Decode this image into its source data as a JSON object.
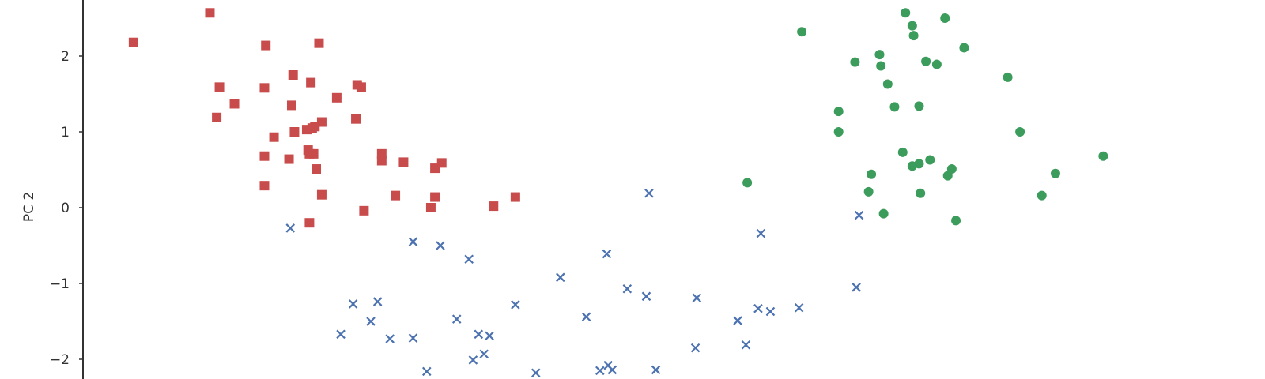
{
  "chart_data": {
    "type": "scatter",
    "ylabel": "PC 2",
    "ylim": [
      -2.2,
      2.8
    ],
    "xlim": [
      -3.4,
      4.8
    ],
    "y_ticks": [
      {
        "value": 2,
        "label": "2"
      },
      {
        "value": 1,
        "label": "1"
      },
      {
        "value": 0,
        "label": "0"
      },
      {
        "value": -1,
        "label": "−1"
      },
      {
        "value": -2,
        "label": "−2"
      }
    ],
    "grid": false,
    "series": [
      {
        "marker": "square",
        "color": "#c94c4c",
        "points": [
          [
            -3.05,
            2.18
          ],
          [
            -2.49,
            2.57
          ],
          [
            -2.08,
            2.14
          ],
          [
            -1.69,
            2.17
          ],
          [
            -2.42,
            1.59
          ],
          [
            -2.31,
            1.37
          ],
          [
            -2.44,
            1.19
          ],
          [
            -2.09,
            1.58
          ],
          [
            -1.88,
            1.75
          ],
          [
            -1.89,
            1.35
          ],
          [
            -1.75,
            1.65
          ],
          [
            -1.56,
            1.45
          ],
          [
            -1.41,
            1.62
          ],
          [
            -1.38,
            1.59
          ],
          [
            -1.42,
            1.17
          ],
          [
            -1.67,
            1.13
          ],
          [
            -2.02,
            0.93
          ],
          [
            -1.87,
            1.0
          ],
          [
            -1.78,
            1.03
          ],
          [
            -1.74,
            1.05
          ],
          [
            -1.72,
            1.07
          ],
          [
            -2.09,
            0.68
          ],
          [
            -1.91,
            0.64
          ],
          [
            -1.77,
            0.76
          ],
          [
            -1.76,
            0.71
          ],
          [
            -1.73,
            0.71
          ],
          [
            -1.71,
            0.51
          ],
          [
            -1.23,
            0.71
          ],
          [
            -1.23,
            0.62
          ],
          [
            -1.07,
            0.6
          ],
          [
            -0.84,
            0.52
          ],
          [
            -0.79,
            0.59
          ],
          [
            -2.09,
            0.29
          ],
          [
            -1.67,
            0.17
          ],
          [
            -1.36,
            -0.04
          ],
          [
            -1.13,
            0.16
          ],
          [
            -0.84,
            0.14
          ],
          [
            -0.87,
            0.0
          ],
          [
            -0.41,
            0.02
          ],
          [
            -0.25,
            0.14
          ],
          [
            -1.76,
            -0.2
          ]
        ]
      },
      {
        "marker": "x",
        "color": "#4c72b0",
        "points": [
          [
            -1.9,
            -0.27
          ],
          [
            -1.0,
            -0.45
          ],
          [
            -0.8,
            -0.5
          ],
          [
            -0.59,
            -0.68
          ],
          [
            0.08,
            -0.92
          ],
          [
            0.42,
            -0.61
          ],
          [
            0.73,
            0.19
          ],
          [
            2.27,
            -0.1
          ],
          [
            1.55,
            -0.34
          ],
          [
            -1.44,
            -1.27
          ],
          [
            -1.26,
            -1.24
          ],
          [
            -1.31,
            -1.5
          ],
          [
            -1.53,
            -1.67
          ],
          [
            -1.17,
            -1.73
          ],
          [
            -1.0,
            -1.72
          ],
          [
            -0.25,
            -1.28
          ],
          [
            -0.68,
            -1.47
          ],
          [
            -0.52,
            -1.67
          ],
          [
            -0.44,
            -1.69
          ],
          [
            -0.56,
            -2.01
          ],
          [
            -0.48,
            -1.93
          ],
          [
            0.27,
            -1.44
          ],
          [
            0.57,
            -1.07
          ],
          [
            0.71,
            -1.17
          ],
          [
            1.08,
            -1.19
          ],
          [
            1.38,
            -1.49
          ],
          [
            1.53,
            -1.33
          ],
          [
            1.62,
            -1.37
          ],
          [
            1.83,
            -1.32
          ],
          [
            2.25,
            -1.05
          ],
          [
            1.07,
            -1.85
          ],
          [
            1.44,
            -1.81
          ],
          [
            0.43,
            -2.08
          ],
          [
            0.37,
            -2.15
          ],
          [
            0.46,
            -2.14
          ],
          [
            0.78,
            -2.14
          ],
          [
            -0.9,
            -2.16
          ],
          [
            -0.1,
            -2.18
          ]
        ]
      },
      {
        "marker": "circle",
        "color": "#3c9c5c",
        "points": [
          [
            1.85,
            2.32
          ],
          [
            2.61,
            2.57
          ],
          [
            2.42,
            2.02
          ],
          [
            2.24,
            1.92
          ],
          [
            2.43,
            1.87
          ],
          [
            2.48,
            1.63
          ],
          [
            2.67,
            2.27
          ],
          [
            2.76,
            1.93
          ],
          [
            2.84,
            1.89
          ],
          [
            3.04,
            2.11
          ],
          [
            3.36,
            1.72
          ],
          [
            2.12,
            1.27
          ],
          [
            2.53,
            1.33
          ],
          [
            2.71,
            1.34
          ],
          [
            2.12,
            1.0
          ],
          [
            3.45,
            1.0
          ],
          [
            2.59,
            0.73
          ],
          [
            2.71,
            0.58
          ],
          [
            2.79,
            0.63
          ],
          [
            2.66,
            0.55
          ],
          [
            2.95,
            0.51
          ],
          [
            2.36,
            0.44
          ],
          [
            2.92,
            0.42
          ],
          [
            3.71,
            0.45
          ],
          [
            4.06,
            0.68
          ],
          [
            1.45,
            0.33
          ],
          [
            2.34,
            0.21
          ],
          [
            2.72,
            0.19
          ],
          [
            3.61,
            0.16
          ],
          [
            2.45,
            -0.08
          ],
          [
            2.98,
            -0.17
          ],
          [
            2.66,
            2.4
          ],
          [
            2.9,
            2.5
          ]
        ]
      }
    ]
  }
}
